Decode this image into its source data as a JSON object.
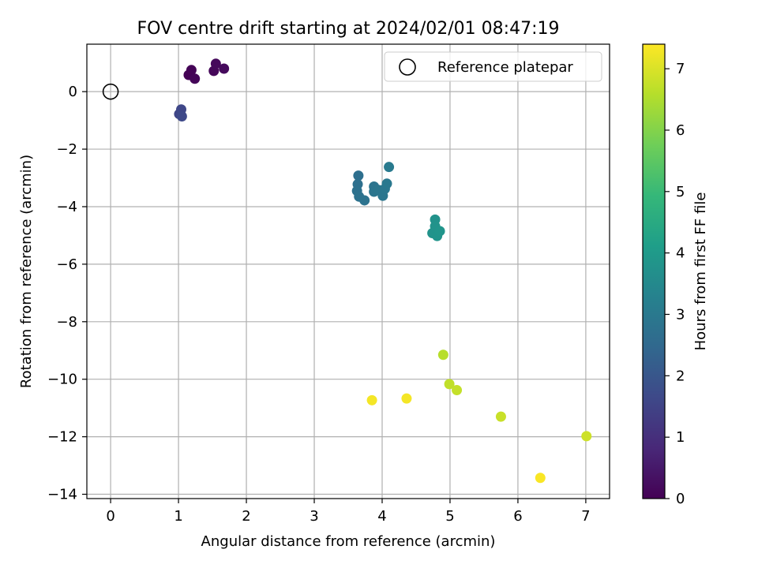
{
  "chart_data": {
    "type": "scatter",
    "title": "FOV centre drift starting at 2024/02/01 08:47:19",
    "xlabel": "Angular distance from reference (arcmin)",
    "ylabel": "Rotation from reference (arcmin)",
    "xlim": [
      -0.35,
      7.35
    ],
    "ylim": [
      -14.15,
      1.65
    ],
    "xticks": [
      0,
      1,
      2,
      3,
      4,
      5,
      6,
      7
    ],
    "yticks": [
      0,
      -2,
      -4,
      -6,
      -8,
      -10,
      -12,
      -14
    ],
    "xtick_labels": [
      "0",
      "1",
      "2",
      "3",
      "4",
      "5",
      "6",
      "7"
    ],
    "ytick_labels": [
      "0",
      "−2",
      "−4",
      "−6",
      "−8",
      "−10",
      "−12",
      "−14"
    ],
    "grid": true,
    "legend": {
      "position": "top-right",
      "entries": [
        "Reference platepar"
      ]
    },
    "reference_point": {
      "x": 0,
      "y": 0,
      "marker": "open-circle",
      "color": "#000000"
    },
    "colorbar": {
      "label": "Hours from first FF file",
      "range": [
        0,
        7.4
      ],
      "ticks": [
        0,
        1,
        2,
        3,
        4,
        5,
        6,
        7
      ],
      "tick_labels": [
        "0",
        "1",
        "2",
        "3",
        "4",
        "5",
        "6",
        "7"
      ],
      "colormap": "viridis",
      "stops": [
        "#440154",
        "#482878",
        "#3e4989",
        "#31688e",
        "#26828e",
        "#1f9e89",
        "#35b779",
        "#6ece58",
        "#b5de2b",
        "#fde725"
      ]
    },
    "points": [
      {
        "x": 1.15,
        "y": 0.58,
        "t": 0.02
      },
      {
        "x": 1.19,
        "y": 0.75,
        "t": 0.05
      },
      {
        "x": 1.24,
        "y": 0.45,
        "t": 0.08
      },
      {
        "x": 1.52,
        "y": 0.72,
        "t": 0.12
      },
      {
        "x": 1.55,
        "y": 0.97,
        "t": 0.15
      },
      {
        "x": 1.67,
        "y": 0.8,
        "t": 0.18
      },
      {
        "x": 1.01,
        "y": -0.78,
        "t": 1.55
      },
      {
        "x": 1.04,
        "y": -0.62,
        "t": 1.6
      },
      {
        "x": 1.05,
        "y": -0.86,
        "t": 1.65
      },
      {
        "x": 3.65,
        "y": -2.92,
        "t": 2.7
      },
      {
        "x": 3.64,
        "y": -3.22,
        "t": 2.72
      },
      {
        "x": 3.63,
        "y": -3.45,
        "t": 2.75
      },
      {
        "x": 3.66,
        "y": -3.65,
        "t": 2.78
      },
      {
        "x": 3.74,
        "y": -3.78,
        "t": 2.8
      },
      {
        "x": 3.88,
        "y": -3.3,
        "t": 2.85
      },
      {
        "x": 3.88,
        "y": -3.48,
        "t": 2.88
      },
      {
        "x": 3.95,
        "y": -3.42,
        "t": 2.9
      },
      {
        "x": 4.01,
        "y": -3.62,
        "t": 2.92
      },
      {
        "x": 4.04,
        "y": -3.38,
        "t": 2.95
      },
      {
        "x": 4.07,
        "y": -3.2,
        "t": 2.98
      },
      {
        "x": 4.1,
        "y": -2.62,
        "t": 3.05
      },
      {
        "x": 4.78,
        "y": -4.45,
        "t": 3.75
      },
      {
        "x": 4.78,
        "y": -4.68,
        "t": 3.78
      },
      {
        "x": 4.74,
        "y": -4.92,
        "t": 3.8
      },
      {
        "x": 4.81,
        "y": -5.02,
        "t": 3.82
      },
      {
        "x": 4.85,
        "y": -4.85,
        "t": 3.85
      },
      {
        "x": 4.9,
        "y": -9.15,
        "t": 6.6
      },
      {
        "x": 4.99,
        "y": -10.17,
        "t": 6.7
      },
      {
        "x": 5.1,
        "y": -10.38,
        "t": 6.75
      },
      {
        "x": 5.75,
        "y": -11.3,
        "t": 6.8
      },
      {
        "x": 7.01,
        "y": -11.98,
        "t": 6.85
      },
      {
        "x": 3.85,
        "y": -10.73,
        "t": 7.3
      },
      {
        "x": 4.36,
        "y": -10.67,
        "t": 7.3
      },
      {
        "x": 6.33,
        "y": -13.43,
        "t": 7.35
      }
    ]
  }
}
